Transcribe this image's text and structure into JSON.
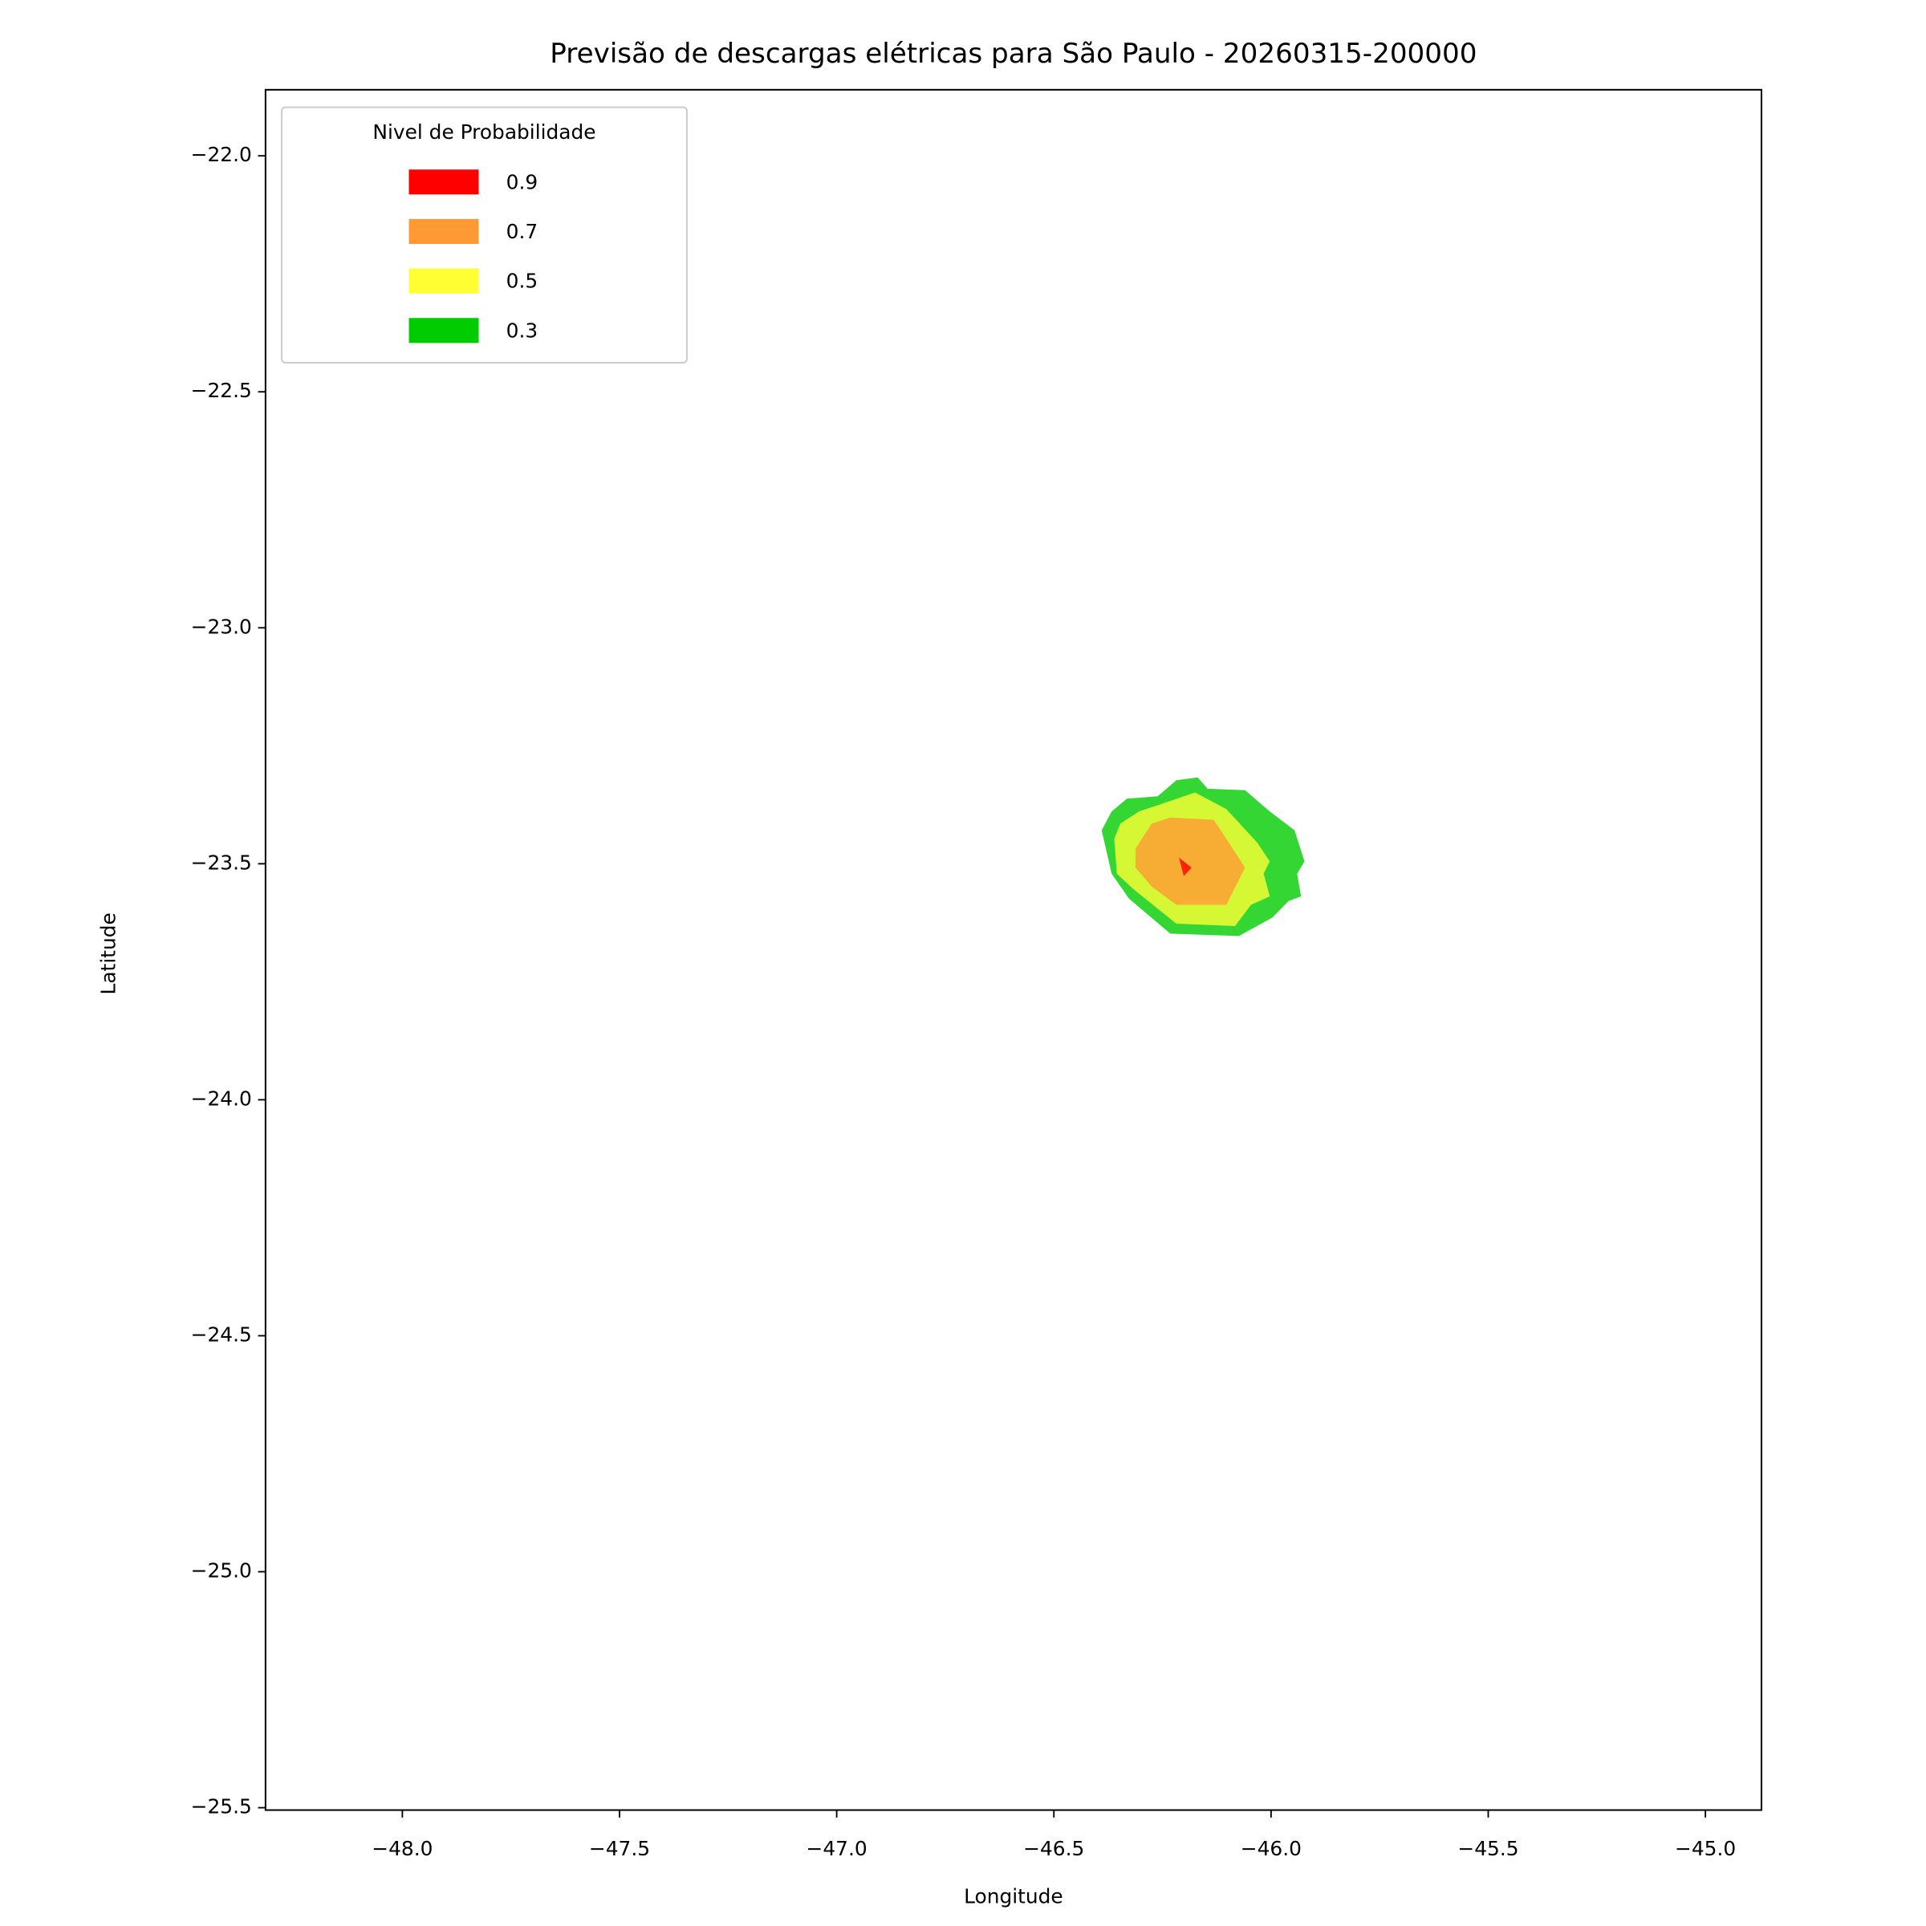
{
  "chart_data": {
    "type": "contour",
    "title": "Previsão de descargas elétricas para São Paulo - 20260315-200000",
    "xlabel": "Longitude",
    "ylabel": "Latitude",
    "xlim": [
      -48.315,
      -44.871
    ],
    "ylim": [
      -25.505,
      -21.86
    ],
    "xticks": [
      {
        "value": -48,
        "label": "−48.0"
      },
      {
        "value": -47.5,
        "label": "−47.5"
      },
      {
        "value": -47,
        "label": "−47.0"
      },
      {
        "value": -46.5,
        "label": "−46.5"
      },
      {
        "value": -46,
        "label": "−46.0"
      },
      {
        "value": -45.5,
        "label": "−45.5"
      },
      {
        "value": -45,
        "label": "−45.0"
      }
    ],
    "yticks": [
      {
        "value": -22,
        "label": "−22.0"
      },
      {
        "value": -22.5,
        "label": "−22.5"
      },
      {
        "value": -23,
        "label": "−23.0"
      },
      {
        "value": -23.5,
        "label": "−23.5"
      },
      {
        "value": -24,
        "label": "−24.0"
      },
      {
        "value": -24.5,
        "label": "−24.5"
      },
      {
        "value": -25,
        "label": "−25.0"
      },
      {
        "value": -25.5,
        "label": "−25.5"
      }
    ],
    "legend_title": "Nivel de Probabilidade",
    "legend_loc": "upper left",
    "alpha": 0.8,
    "series": [
      {
        "name": "0.9",
        "color": "#ff0000",
        "lon": [
          -46.212,
          -46.183,
          -46.201
        ],
        "lat": [
          -23.487,
          -23.508,
          -23.526
        ]
      },
      {
        "name": "0.7",
        "color": "#ff9933",
        "lon": [
          -46.312,
          -46.275,
          -46.232,
          -46.132,
          -46.103,
          -46.06,
          -46.103,
          -46.218,
          -46.275,
          -46.312
        ],
        "lat": [
          -23.468,
          -23.415,
          -23.402,
          -23.407,
          -23.447,
          -23.508,
          -23.587,
          -23.587,
          -23.548,
          -23.508
        ]
      },
      {
        "name": "0.5",
        "color": "#ffff33",
        "lon": [
          -46.361,
          -46.347,
          -46.304,
          -46.261,
          -46.175,
          -46.103,
          -46.032,
          -46.003,
          -46.017,
          -46.003,
          -46.046,
          -46.083,
          -46.218,
          -46.318,
          -46.355
        ],
        "lat": [
          -23.447,
          -23.415,
          -23.389,
          -23.376,
          -23.349,
          -23.384,
          -23.455,
          -23.495,
          -23.521,
          -23.569,
          -23.587,
          -23.632,
          -23.627,
          -23.553,
          -23.521
        ]
      },
      {
        "name": "0.3",
        "color": "#00cc00",
        "lon": [
          -46.39,
          -46.367,
          -46.332,
          -46.261,
          -46.218,
          -46.169,
          -46.146,
          -46.06,
          -46.003,
          -45.946,
          -45.923,
          -45.94,
          -45.931,
          -45.96,
          -45.997,
          -46.074,
          -46.232,
          -46.327,
          -46.367
        ],
        "lat": [
          -23.429,
          -23.389,
          -23.362,
          -23.357,
          -23.323,
          -23.317,
          -23.341,
          -23.344,
          -23.389,
          -23.429,
          -23.495,
          -23.521,
          -23.569,
          -23.579,
          -23.614,
          -23.653,
          -23.648,
          -23.574,
          -23.521
        ]
      }
    ]
  }
}
